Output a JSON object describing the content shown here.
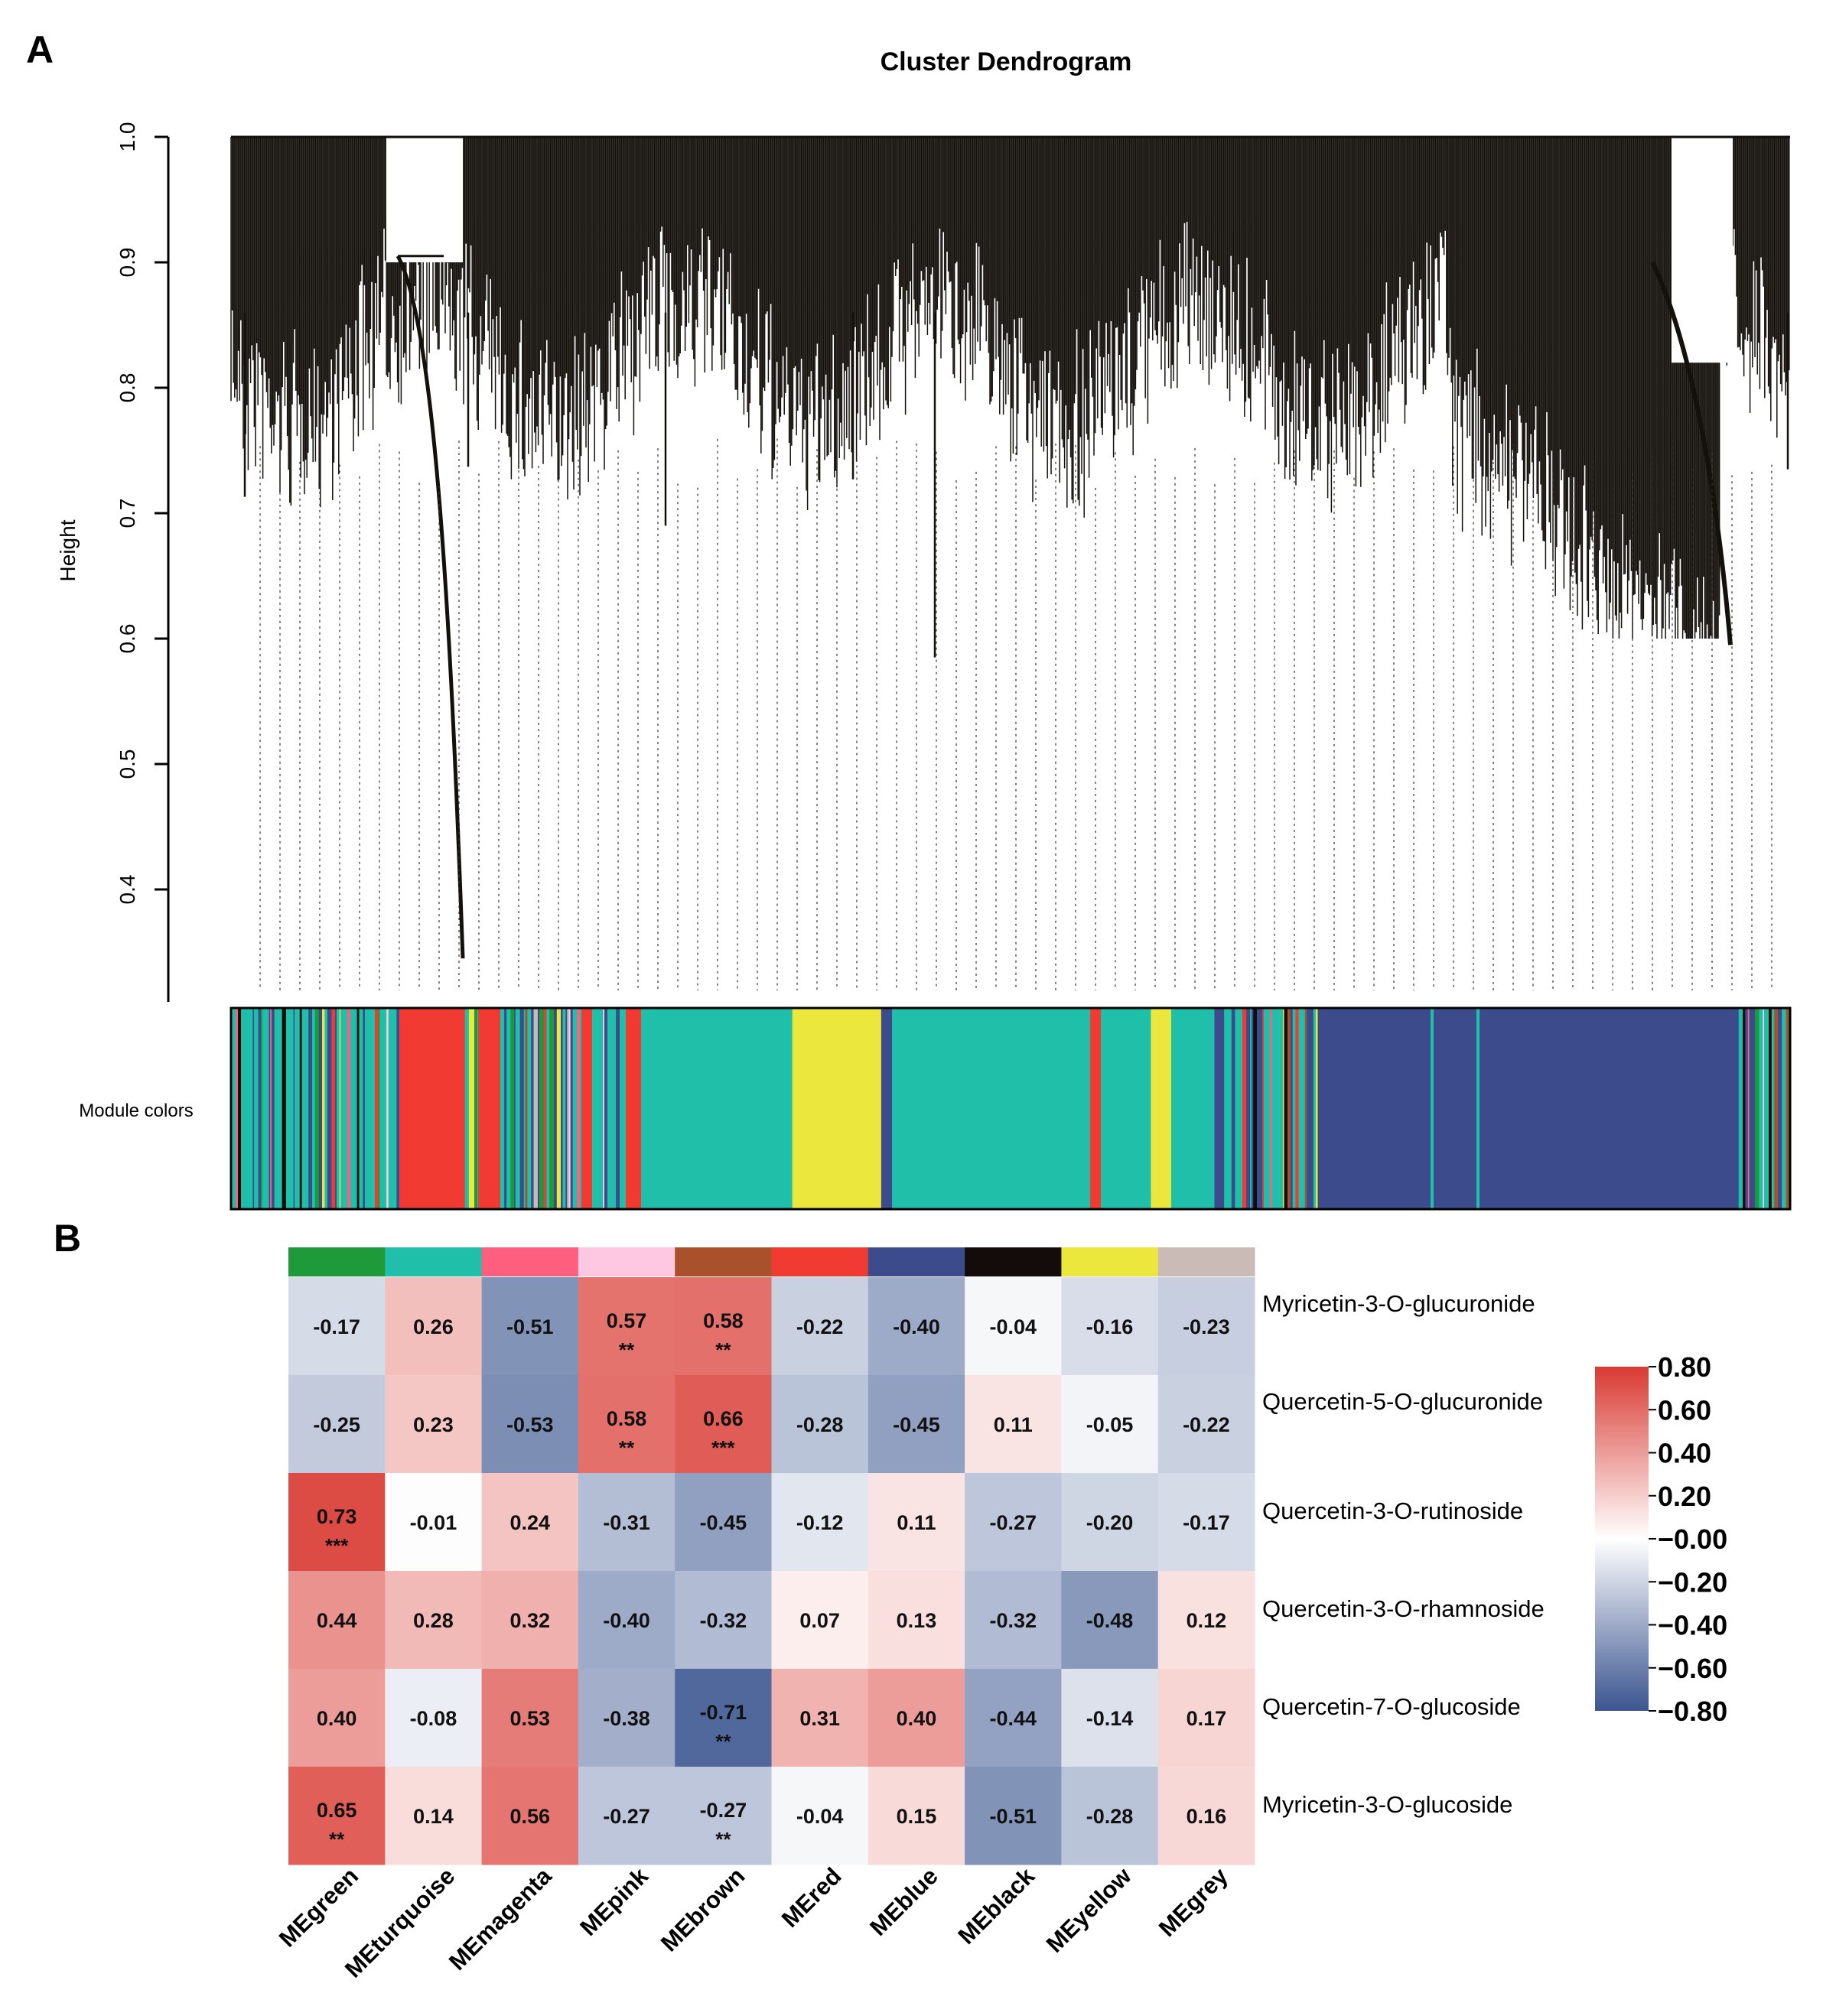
{
  "panels": {
    "a_label": "A",
    "b_label": "B"
  },
  "colors": {
    "dendro_line": "#14110c",
    "module": {
      "green": "#1f9a3a",
      "turquoise": "#1fbfaa",
      "magenta": "#ff5f7e",
      "pink": "#ffc8e2",
      "brown": "#a8512a",
      "red": "#f03a32",
      "blue": "#3c4b8c",
      "black": "#130c0b",
      "yellow": "#ebe73c",
      "grey": "#cbbbb6"
    }
  },
  "chart_data": [
    {
      "type": "dendrogram",
      "title": "Cluster Dendrogram",
      "ylabel": "Height",
      "ylim": [
        0.3,
        1.0
      ],
      "y_ticks": [
        "0.4",
        "0.5",
        "0.6",
        "0.7",
        "0.8",
        "0.9",
        "1.0"
      ],
      "color_bar_label": "Module colors",
      "module_color_blocks": [
        {
          "color": "mixed",
          "from": 0.0,
          "to": 0.108
        },
        {
          "color": "red",
          "from": 0.108,
          "to": 0.15
        },
        {
          "color": "mixed",
          "from": 0.15,
          "to": 0.26
        },
        {
          "color": "turquoise",
          "from": 0.26,
          "to": 0.36
        },
        {
          "color": "yellow",
          "from": 0.36,
          "to": 0.417
        },
        {
          "color": "blue",
          "from": 0.417,
          "to": 0.424
        },
        {
          "color": "turquoise",
          "from": 0.424,
          "to": 0.59
        },
        {
          "color": "yellow",
          "from": 0.59,
          "to": 0.603
        },
        {
          "color": "turquoise",
          "from": 0.603,
          "to": 0.63
        },
        {
          "color": "mixed",
          "from": 0.63,
          "to": 0.697
        },
        {
          "color": "blue",
          "from": 0.697,
          "to": 0.967
        },
        {
          "color": "mixed",
          "from": 0.967,
          "to": 1.0
        }
      ]
    },
    {
      "type": "heatmap",
      "columns": [
        "MEgreen",
        "MEturquoise",
        "MEmagenta",
        "MEpink",
        "MEbrown",
        "MEred",
        "MEblue",
        "MEblack",
        "MEyellow",
        "MEgrey"
      ],
      "column_colors": [
        "green",
        "turquoise",
        "magenta",
        "pink",
        "brown",
        "red",
        "blue",
        "black",
        "yellow",
        "grey"
      ],
      "rows": [
        "Myricetin-3-O-glucuronide",
        "Quercetin-5-O-glucuronide",
        "Quercetin-3-O-rutinoside",
        "Quercetin-3-O-rhamnoside",
        "Quercetin-7-O-glucoside",
        "Myricetin-3-O-glucoside"
      ],
      "values": [
        [
          -0.17,
          0.26,
          -0.51,
          0.57,
          0.58,
          -0.22,
          -0.4,
          -0.04,
          -0.16,
          -0.23
        ],
        [
          -0.25,
          0.23,
          -0.53,
          0.58,
          0.66,
          -0.28,
          -0.45,
          0.11,
          -0.05,
          -0.22
        ],
        [
          0.73,
          -0.01,
          0.24,
          -0.31,
          -0.45,
          -0.12,
          0.11,
          -0.27,
          -0.2,
          -0.17
        ],
        [
          0.44,
          0.28,
          0.32,
          -0.4,
          -0.32,
          0.07,
          0.13,
          -0.32,
          -0.48,
          0.12
        ],
        [
          0.4,
          -0.08,
          0.53,
          -0.38,
          -0.71,
          0.31,
          0.4,
          -0.44,
          -0.14,
          0.17
        ],
        [
          0.65,
          0.14,
          0.56,
          -0.27,
          -0.27,
          -0.04,
          0.15,
          -0.51,
          -0.28,
          0.16
        ]
      ],
      "labels": [
        [
          "-0.17",
          "0.26",
          "-0.51",
          "0.57",
          "0.58",
          "-0.22",
          "-0.40",
          "-0.04",
          "-0.16",
          "-0.23"
        ],
        [
          "-0.25",
          "0.23",
          "-0.53",
          "0.58",
          "0.66",
          "-0.28",
          "-0.45",
          "0.11",
          "-0.05",
          "-0.22"
        ],
        [
          "0.73",
          "-0.01",
          "0.24",
          "-0.31",
          "-0.45",
          "-0.12",
          "0.11",
          "-0.27",
          "-0.20",
          "-0.17"
        ],
        [
          "0.44",
          "0.28",
          "0.32",
          "-0.40",
          "-0.32",
          "0.07",
          "0.13",
          "-0.32",
          "-0.48",
          "0.12"
        ],
        [
          "0.40",
          "-0.08",
          "0.53",
          "-0.38",
          "-0.71",
          "0.31",
          "0.40",
          "-0.44",
          "-0.14",
          "0.17"
        ],
        [
          "0.65",
          "0.14",
          "0.56",
          "-0.27",
          "-0.27",
          "-0.04",
          "0.15",
          "-0.51",
          "-0.28",
          "0.16"
        ]
      ],
      "significance": [
        [
          "",
          "",
          "",
          "**",
          "**",
          "",
          "",
          "",
          "",
          ""
        ],
        [
          "",
          "",
          "",
          "**",
          "***",
          "",
          "",
          "",
          "",
          ""
        ],
        [
          "***",
          "",
          "",
          "",
          "",
          "",
          "",
          "",
          "",
          ""
        ],
        [
          "",
          "",
          "",
          "",
          "",
          "",
          "",
          "",
          "",
          ""
        ],
        [
          "",
          "",
          "",
          "",
          "**",
          "",
          "",
          "",
          "",
          ""
        ],
        [
          "**",
          "",
          "",
          "",
          "**",
          "",
          "",
          "",
          "",
          ""
        ]
      ],
      "color_scale": {
        "min": -0.8,
        "max": 0.8,
        "low": "#3b5590",
        "mid": "#ffffff",
        "high": "#d93a32"
      },
      "legend_position": "right",
      "legend_ticks": [
        "0.80",
        "0.60",
        "0.40",
        "0.20",
        "−0.00",
        "−0.20",
        "−0.40",
        "−0.60",
        "−0.80"
      ]
    }
  ]
}
